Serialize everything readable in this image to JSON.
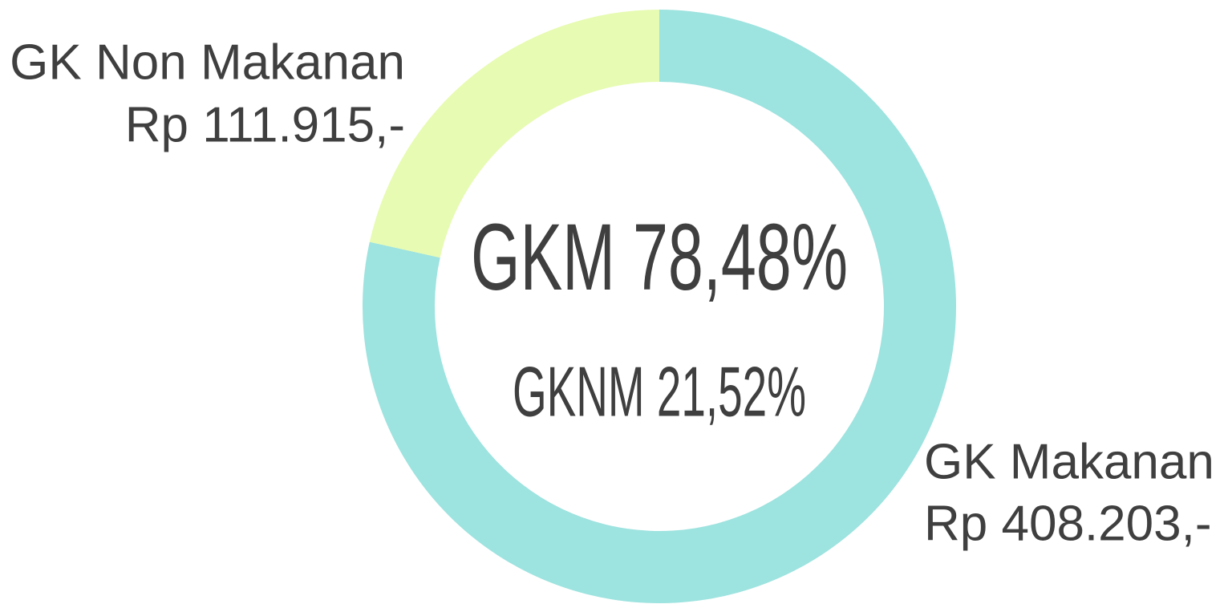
{
  "chart_data": {
    "type": "donut",
    "categories": [
      "GK Makanan",
      "GK Non Makanan"
    ],
    "values": [
      408203,
      111915
    ],
    "value_labels": [
      "Rp 408.203,-",
      "Rp 111.915,-"
    ],
    "colors": [
      "#9de3df",
      "#e7fbb2"
    ],
    "annotations": [
      "GKM 78,48%",
      "GKNM 21,52%"
    ]
  }
}
